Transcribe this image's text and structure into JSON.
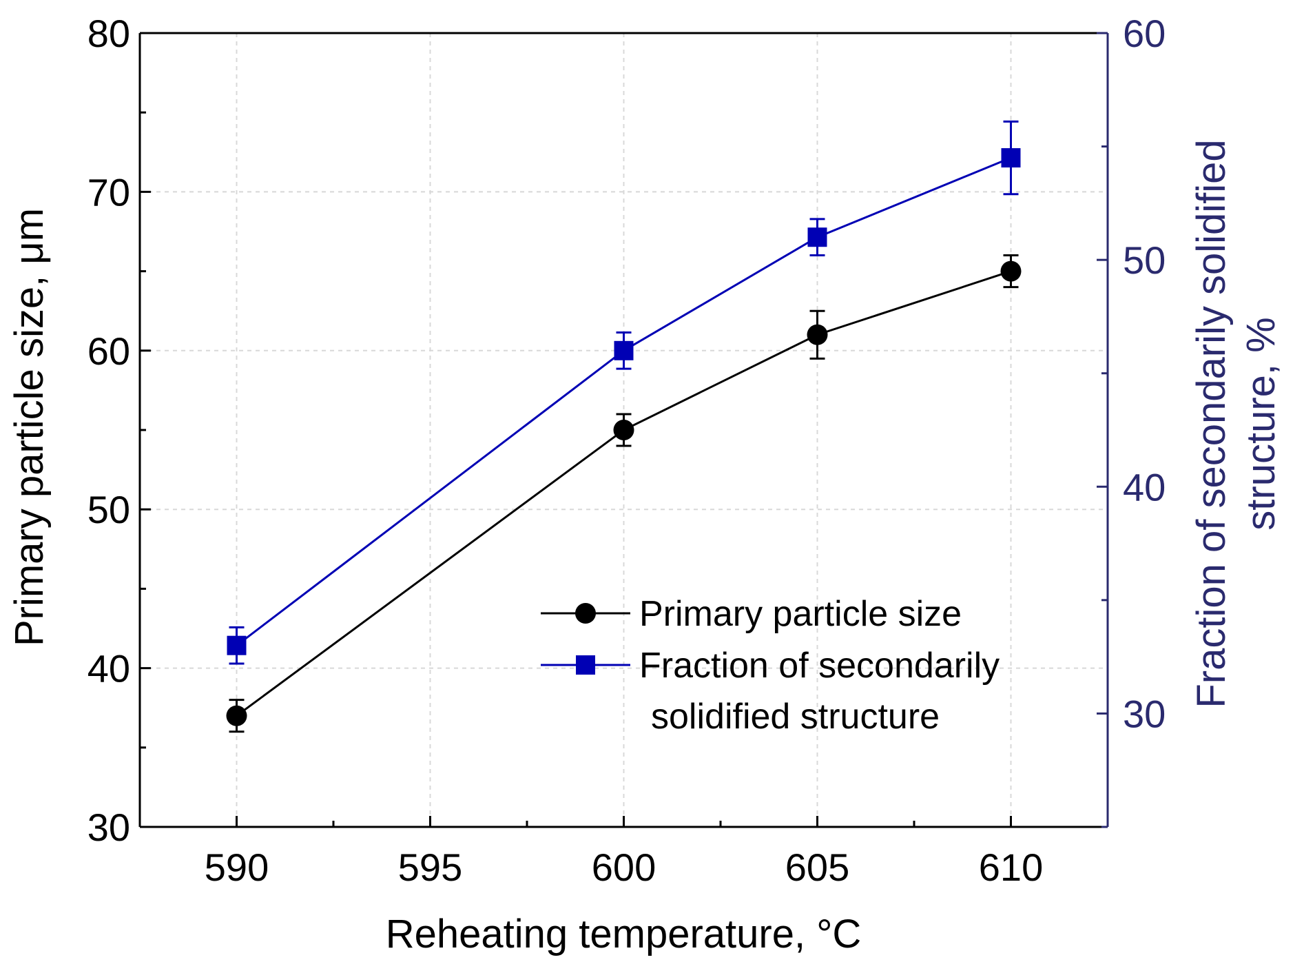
{
  "chart_data": {
    "type": "line",
    "title": "",
    "xlabel": "Reheating temperature, °C",
    "ylabel_left": "Primary particle size, μm",
    "ylabel_right_line1": "Fraction of secondarily solidified",
    "ylabel_right_line2": "structure, %",
    "xlim": [
      587.5,
      612.5
    ],
    "ylim_left": [
      30,
      80
    ],
    "ylim_right": [
      25,
      60
    ],
    "x_ticks": [
      590,
      595,
      600,
      605,
      610
    ],
    "y_left_ticks": [
      30,
      40,
      50,
      60,
      70,
      80
    ],
    "y_right_ticks": [
      30,
      40,
      50,
      60
    ],
    "grid": true,
    "legend_position": "lower-right",
    "series": [
      {
        "name": "Primary particle size",
        "axis": "left",
        "marker": "circle",
        "color": "#000000",
        "x": [
          590,
          600,
          605,
          610
        ],
        "y": [
          37,
          55,
          61,
          65
        ],
        "error": [
          1.0,
          1.0,
          1.5,
          1.0
        ]
      },
      {
        "name": "Fraction of secondarily solidified structure",
        "axis": "right",
        "marker": "square",
        "color": "#0000b4",
        "x": [
          590,
          600,
          605,
          610
        ],
        "y": [
          33,
          46,
          51,
          54.5
        ],
        "error": [
          0.8,
          0.8,
          0.8,
          1.6
        ]
      }
    ],
    "legend": {
      "entry1": "Primary particle size",
      "entry2_line1": "Fraction of secondarily",
      "entry2_line2": "solidified structure"
    }
  },
  "colors": {
    "right_axis": "#2a2a6e",
    "grid": "#d8d8d8",
    "axis": "#000000"
  }
}
